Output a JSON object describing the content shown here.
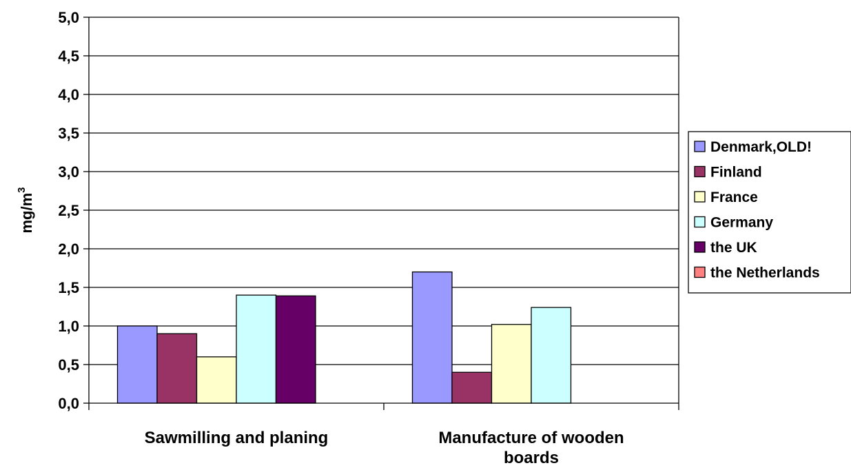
{
  "chart_data": {
    "type": "bar",
    "title": "",
    "xlabel": "",
    "ylabel": "mg/m",
    "ylabel_superscript": "3",
    "ylim": [
      0,
      5
    ],
    "ytick_labels": [
      "0,0",
      "0,5",
      "1,0",
      "1,5",
      "2,0",
      "2,5",
      "3,0",
      "3,5",
      "4,0",
      "4,5",
      "5,0"
    ],
    "grid": true,
    "legend_position": "right",
    "categories": [
      [
        "Sawmilling and planing"
      ],
      [
        "Manufacture of wooden",
        "boards"
      ]
    ],
    "series": [
      {
        "name": "Denmark,OLD!",
        "color": "#9999ff",
        "values": [
          1.0,
          1.7
        ]
      },
      {
        "name": "Finland",
        "color": "#993366",
        "values": [
          0.9,
          0.4
        ]
      },
      {
        "name": "France",
        "color": "#ffffcc",
        "values": [
          0.6,
          1.02
        ]
      },
      {
        "name": "Germany",
        "color": "#ccffff",
        "values": [
          1.4,
          1.24
        ]
      },
      {
        "name": "the UK",
        "color": "#660066",
        "values": [
          1.39,
          null
        ]
      },
      {
        "name": "the Netherlands",
        "color": "#ff8080",
        "values": [
          null,
          null
        ]
      }
    ]
  }
}
